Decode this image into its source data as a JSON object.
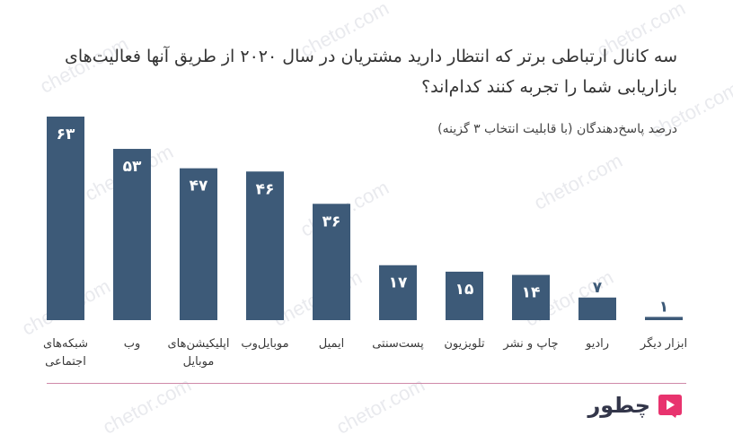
{
  "title": "سه کانال ارتباطی برتر که انتظار دارید مشتریان در سال ۲۰۲۰ از طریق آنها فعالیت‌های بازاریابی شما را تجربه کنند کدام‌اند؟",
  "subtitle": "درصد پاسخ‌دهندگان (با قابلیت انتخاب ۳ گزینه)",
  "watermark": "chetor.com",
  "brand": {
    "name": "چطور",
    "logo_icon": "play-triangle-icon",
    "color": "#e8336e"
  },
  "chart_data": {
    "type": "bar",
    "bar_color": "#3d5a78",
    "value_label_color": "#ffffff",
    "categories": [
      [
        "شبکه‌های",
        "اجتماعی"
      ],
      [
        "وب"
      ],
      [
        "اپلیکیشن‌های",
        "موبایل"
      ],
      [
        "موبایل‌وب"
      ],
      [
        "ایمیل"
      ],
      [
        "پست‌سنتی"
      ],
      [
        "تلویزیون"
      ],
      [
        "چاپ و نشر"
      ],
      [
        "رادیو"
      ],
      [
        "ابزار دیگر"
      ]
    ],
    "values": [
      63,
      53,
      47,
      46,
      36,
      17,
      15,
      14,
      7,
      1
    ],
    "value_labels": [
      "۶۳",
      "۵۳",
      "۴۷",
      "۴۶",
      "۳۶",
      "۱۷",
      "۱۵",
      "۱۴",
      "۷",
      "۱"
    ],
    "ylim": [
      0,
      63
    ],
    "grid": false,
    "legend": "none"
  }
}
